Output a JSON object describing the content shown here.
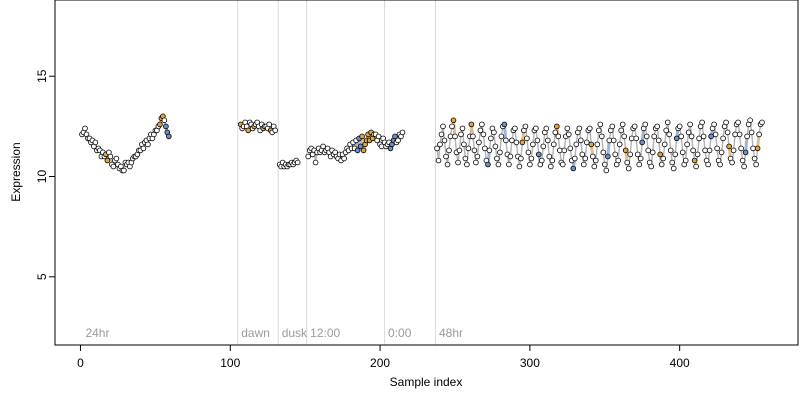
{
  "chart_data": {
    "type": "scatter",
    "title": "",
    "xlabel": "Sample index",
    "ylabel": "Expression",
    "xlim": [
      -17,
      479
    ],
    "ylim": [
      1.6,
      18.8
    ],
    "xticks": [
      0,
      100,
      200,
      300,
      400
    ],
    "yticks": [
      5,
      10,
      15
    ],
    "grid": false,
    "legend": "none",
    "point_fill_default": "#ffffff",
    "point_stroke": "#000000",
    "colors": {
      "orange": "#e8a33a",
      "blue": "#6f8fc7",
      "line_orange": "#e3bd8c",
      "line_blue": "#9fb4d8",
      "segment_line": "#b3b3b3",
      "divider": "#d9d9d9",
      "annotation": "#9a9a9a"
    },
    "annotations": [
      {
        "x": 2,
        "label": "24hr"
      },
      {
        "x": 106,
        "label": "dawn"
      },
      {
        "x": 133,
        "label": "dusk"
      },
      {
        "x": 152,
        "label": "12:00"
      },
      {
        "x": 204,
        "label": "0:00"
      },
      {
        "x": 238,
        "label": "48hr"
      }
    ],
    "annotation_y": 2.0,
    "dividers": [
      105,
      132,
      151,
      203,
      237
    ],
    "segments": [
      {
        "name": "seg1",
        "x_start": 1,
        "values": [
          12.1,
          12.2,
          12.4,
          12.1,
          11.9,
          11.9,
          11.7,
          11.8,
          11.5,
          11.7,
          11.3,
          11.4,
          11.3,
          11.0,
          11.2,
          11.0,
          11.1,
          10.8,
          11.2,
          11.0,
          10.6,
          10.5,
          10.8,
          10.9,
          10.6,
          10.4,
          10.5,
          10.3,
          10.3,
          10.7,
          10.6,
          10.7,
          10.5,
          10.7,
          10.9,
          11.0,
          11.0,
          11.1,
          11.3,
          11.3,
          11.6,
          11.4,
          11.7,
          11.8,
          11.6,
          11.9,
          12.1,
          11.9,
          12.1,
          12.3,
          12.3,
          12.5,
          12.6,
          12.9,
          13.0,
          12.8,
          12.5,
          12.2,
          12.0
        ],
        "highlights": [
          [
            16,
            "orange"
          ],
          [
            17,
            "orange"
          ],
          [
            52,
            "orange"
          ],
          [
            53,
            "orange"
          ],
          [
            54,
            "orange"
          ],
          [
            56,
            "blue"
          ],
          [
            57,
            "blue"
          ],
          [
            58,
            "blue"
          ]
        ]
      },
      {
        "name": "seg2",
        "x_start": 107,
        "values": [
          12.6,
          12.4,
          12.5,
          12.7,
          12.5,
          12.3,
          12.7,
          12.6,
          12.4,
          12.5,
          12.6,
          12.7,
          12.5,
          12.3,
          12.6,
          12.4,
          12.5,
          12.5,
          12.4,
          12.6,
          12.3,
          12.2,
          12.5,
          12.3
        ],
        "highlights": [
          [
            0,
            "orange"
          ],
          [
            5,
            "orange"
          ],
          [
            9,
            "orange"
          ],
          [
            15,
            "orange"
          ],
          [
            20,
            "orange"
          ]
        ]
      },
      {
        "name": "seg3",
        "x_start": 133,
        "values": [
          10.6,
          10.5,
          10.7,
          10.5,
          10.6,
          10.5,
          10.6,
          10.6,
          10.7,
          10.6,
          10.7,
          10.8,
          10.7
        ],
        "highlights": []
      },
      {
        "name": "seg4",
        "x_start": 152,
        "values": [
          11.0,
          11.3,
          11.4,
          11.1,
          11.3,
          10.7,
          11.2,
          11.4,
          11.2,
          11.3,
          11.5,
          11.2,
          11.3,
          11.4,
          11.2,
          11.0,
          11.3,
          11.1,
          11.2,
          11.0,
          10.9,
          11.1,
          10.8,
          11.1,
          10.9,
          11.2,
          11.4,
          11.3,
          11.6,
          11.4,
          11.7,
          11.4,
          11.8,
          11.3,
          11.9,
          11.5,
          12.0,
          11.3,
          11.6,
          11.8,
          12.1,
          11.8,
          12.2,
          11.9,
          12.1,
          12.1,
          11.8,
          12.0,
          11.6,
          11.5,
          11.9,
          11.7,
          11.5,
          11.6,
          11.7,
          11.4,
          11.6,
          11.8,
          12.0,
          11.7,
          11.8,
          12.1,
          12.0,
          12.2
        ],
        "highlights": [
          [
            33,
            "blue"
          ],
          [
            34,
            "blue"
          ],
          [
            35,
            "blue"
          ],
          [
            36,
            "orange"
          ],
          [
            37,
            "orange"
          ],
          [
            38,
            "orange"
          ],
          [
            39,
            "orange"
          ],
          [
            40,
            "orange"
          ],
          [
            41,
            "orange"
          ],
          [
            42,
            "orange"
          ],
          [
            43,
            "orange"
          ],
          [
            55,
            "blue"
          ],
          [
            56,
            "blue"
          ],
          [
            57,
            "blue"
          ],
          [
            58,
            "blue"
          ]
        ]
      },
      {
        "name": "seg5",
        "x_start": 238,
        "values": [
          11.4,
          10.8,
          11.6,
          12.1,
          12.5,
          11.8,
          11.0,
          10.6,
          11.3,
          12.0,
          12.5,
          12.8,
          12.0,
          11.2,
          10.7,
          11.3,
          12.1,
          12.4,
          11.6,
          10.9,
          10.6,
          11.4,
          12.0,
          12.6,
          12.0,
          11.3,
          10.7,
          11.0,
          11.7,
          12.3,
          12.6,
          12.1,
          11.4,
          10.8,
          10.6,
          11.3,
          11.9,
          12.4,
          12.2,
          11.5,
          10.9,
          10.6,
          11.2,
          12.0,
          12.5,
          12.6,
          11.8,
          11.1,
          10.6,
          11.0,
          11.8,
          12.3,
          12.4,
          11.7,
          11.0,
          10.5,
          10.9,
          11.7,
          12.3,
          12.5,
          11.9,
          11.2,
          10.6,
          10.9,
          11.6,
          12.3,
          12.4,
          11.8,
          11.1,
          10.6,
          10.8,
          11.5,
          12.2,
          12.4,
          11.8,
          11.0,
          10.5,
          10.8,
          11.6,
          12.2,
          12.5,
          12.0,
          11.3,
          10.7,
          10.6,
          11.3,
          12.0,
          12.4,
          12.1,
          11.4,
          10.8,
          10.4,
          10.9,
          11.6,
          12.2,
          12.4,
          11.8,
          11.1,
          10.6,
          10.9,
          11.7,
          12.3,
          12.4,
          11.6,
          11.0,
          10.5,
          10.8,
          11.6,
          12.3,
          12.6,
          12.0,
          11.2,
          10.6,
          10.3,
          11.0,
          11.8,
          12.3,
          12.5,
          11.8,
          11.1,
          10.6,
          10.8,
          11.6,
          12.3,
          12.6,
          12.0,
          11.3,
          10.7,
          10.4,
          11.1,
          11.9,
          12.4,
          12.5,
          11.9,
          11.1,
          10.6,
          10.9,
          11.7,
          12.4,
          12.6,
          12.0,
          11.3,
          10.7,
          10.5,
          11.2,
          12.0,
          12.4,
          12.5,
          11.8,
          11.1,
          10.6,
          10.9,
          11.6,
          12.3,
          12.7,
          12.1,
          11.3,
          10.7,
          10.4,
          11.1,
          11.9,
          12.4,
          12.5,
          12.0,
          11.2,
          10.6,
          10.8,
          11.6,
          12.2,
          12.6,
          12.0,
          11.3,
          10.8,
          10.5,
          11.1,
          11.9,
          12.5,
          12.7,
          12.0,
          11.3,
          10.8,
          10.6,
          11.3,
          12.0,
          12.4,
          12.6,
          12.1,
          11.4,
          10.8,
          10.6,
          11.2,
          11.9,
          12.5,
          12.7,
          12.2,
          11.5,
          10.9,
          10.7,
          11.3,
          12.1,
          12.6,
          12.7,
          12.1,
          11.4,
          10.8,
          10.5,
          11.2,
          12.0,
          12.6,
          12.8,
          12.2,
          11.4,
          10.9,
          10.6,
          11.4,
          12.1,
          12.6,
          12.7
        ],
        "highlights": [
          [
            11,
            "orange"
          ],
          [
            23,
            "orange"
          ],
          [
            34,
            "blue"
          ],
          [
            45,
            "blue"
          ],
          [
            57,
            "orange"
          ],
          [
            68,
            "blue"
          ],
          [
            80,
            "orange"
          ],
          [
            91,
            "blue"
          ],
          [
            103,
            "orange"
          ],
          [
            114,
            "blue"
          ],
          [
            126,
            "orange"
          ],
          [
            137,
            "blue"
          ],
          [
            149,
            "orange"
          ],
          [
            160,
            "blue"
          ],
          [
            172,
            "orange"
          ],
          [
            183,
            "blue"
          ],
          [
            195,
            "orange"
          ],
          [
            206,
            "blue"
          ],
          [
            214,
            "orange"
          ],
          [
            218,
            "orange"
          ]
        ]
      }
    ]
  }
}
